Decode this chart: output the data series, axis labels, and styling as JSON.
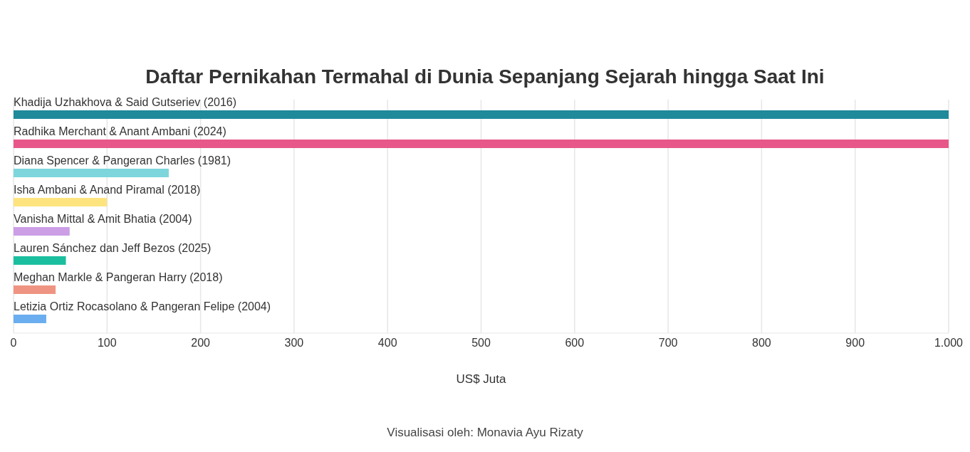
{
  "chart_data": {
    "type": "bar",
    "orientation": "horizontal",
    "title": "Daftar Pernikahan Termahal di Dunia Sepanjang Sejarah hingga Saat Ini",
    "categories": [
      "Khadija Uzhakhova & Said Gutseriev (2016)",
      "Radhika Merchant & Anant Ambani (2024)",
      "Diana Spencer & Pangeran Charles (1981)",
      "Isha Ambani & Anand Piramal (2018)",
      "Vanisha Mittal & Amit Bhatia (2004)",
      "Lauren Sánchez dan Jeff Bezos (2025)",
      "Meghan Markle & Pangeran Harry (2018)",
      "Letizia Ortiz Rocasolano & Pangeran Felipe (2004)"
    ],
    "values": [
      1000,
      1000,
      166,
      100,
      60,
      56,
      45,
      35
    ],
    "colors": [
      "#1e8a9a",
      "#e8578a",
      "#7dd6dc",
      "#fde47f",
      "#cc9ee6",
      "#1bbf9f",
      "#ef9482",
      "#6aaef0"
    ],
    "xlim": [
      0,
      1000
    ],
    "xticks": [
      0,
      100,
      200,
      300,
      400,
      500,
      600,
      700,
      800,
      900,
      {
        "value": 1000,
        "label": "1.000"
      }
    ],
    "xlabel": "US$ Juta",
    "grid": "x",
    "annotations": [
      "Visualisasi oleh: Monavia Ayu Rizaty"
    ]
  }
}
